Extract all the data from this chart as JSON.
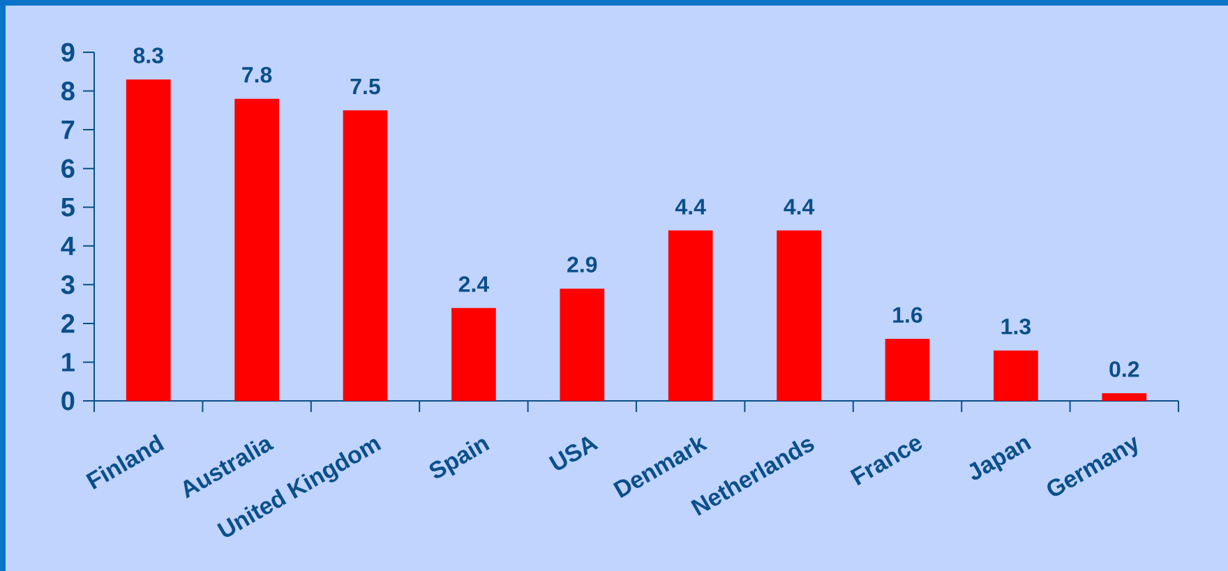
{
  "chart_data": {
    "type": "bar",
    "categories": [
      "Finland",
      "Australia",
      "United Kingdom",
      "Spain",
      "USA",
      "Denmark",
      "Netherlands",
      "France",
      "Japan",
      "Germany"
    ],
    "values": [
      8.3,
      7.8,
      7.5,
      2.4,
      2.9,
      4.4,
      4.4,
      1.6,
      1.3,
      0.2
    ],
    "color": "#ff0000",
    "ylim": [
      0,
      9
    ],
    "yticks": [
      0,
      1,
      2,
      3,
      4,
      5,
      6,
      7,
      8,
      9
    ],
    "data_labels": true
  }
}
